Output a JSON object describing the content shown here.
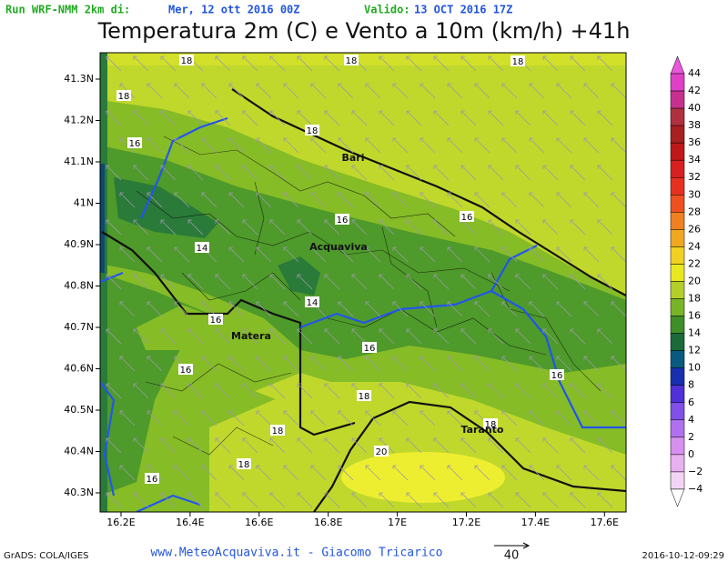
{
  "header": {
    "run_label": "Run WRF-NMM 2km di:",
    "run_date": "Mer, 12 ott 2016 00Z",
    "valid_label": "Valido:",
    "valid_date": "13 OCT 2016 17Z",
    "title": "Temperatura 2m (C) e Vento a 10m (km/h) +41h"
  },
  "map": {
    "lon_ticks": [
      "16.2E",
      "16.4E",
      "16.6E",
      "16.8E",
      "17E",
      "17.2E",
      "17.4E",
      "17.6E"
    ],
    "lat_ticks": [
      "41.3N",
      "41.2N",
      "41.1N",
      "41N",
      "40.9N",
      "40.8N",
      "40.7N",
      "40.6N",
      "40.5N",
      "40.4N",
      "40.3N"
    ],
    "cities": [
      "Bari",
      "Acquaviva",
      "Matera",
      "Taranto"
    ],
    "contour_labels": [
      "18",
      "18",
      "18",
      "18",
      "16",
      "18",
      "16",
      "16",
      "14",
      "14",
      "16",
      "16",
      "16",
      "16",
      "18",
      "18",
      "18",
      "18",
      "20",
      "16"
    ]
  },
  "colorbar": {
    "labels": [
      "44",
      "42",
      "40",
      "38",
      "36",
      "34",
      "32",
      "30",
      "28",
      "26",
      "24",
      "22",
      "20",
      "18",
      "16",
      "14",
      "12",
      "10",
      "8",
      "6",
      "4",
      "2",
      "0",
      "−2",
      "−4"
    ]
  },
  "footer": {
    "software": "GrADS: COLA/IGES",
    "credit": "www.MeteoAcquaviva.it - Giacomo Tricarico",
    "wind_scale": "40",
    "timestamp": "2016-10-12-09:29"
  }
}
